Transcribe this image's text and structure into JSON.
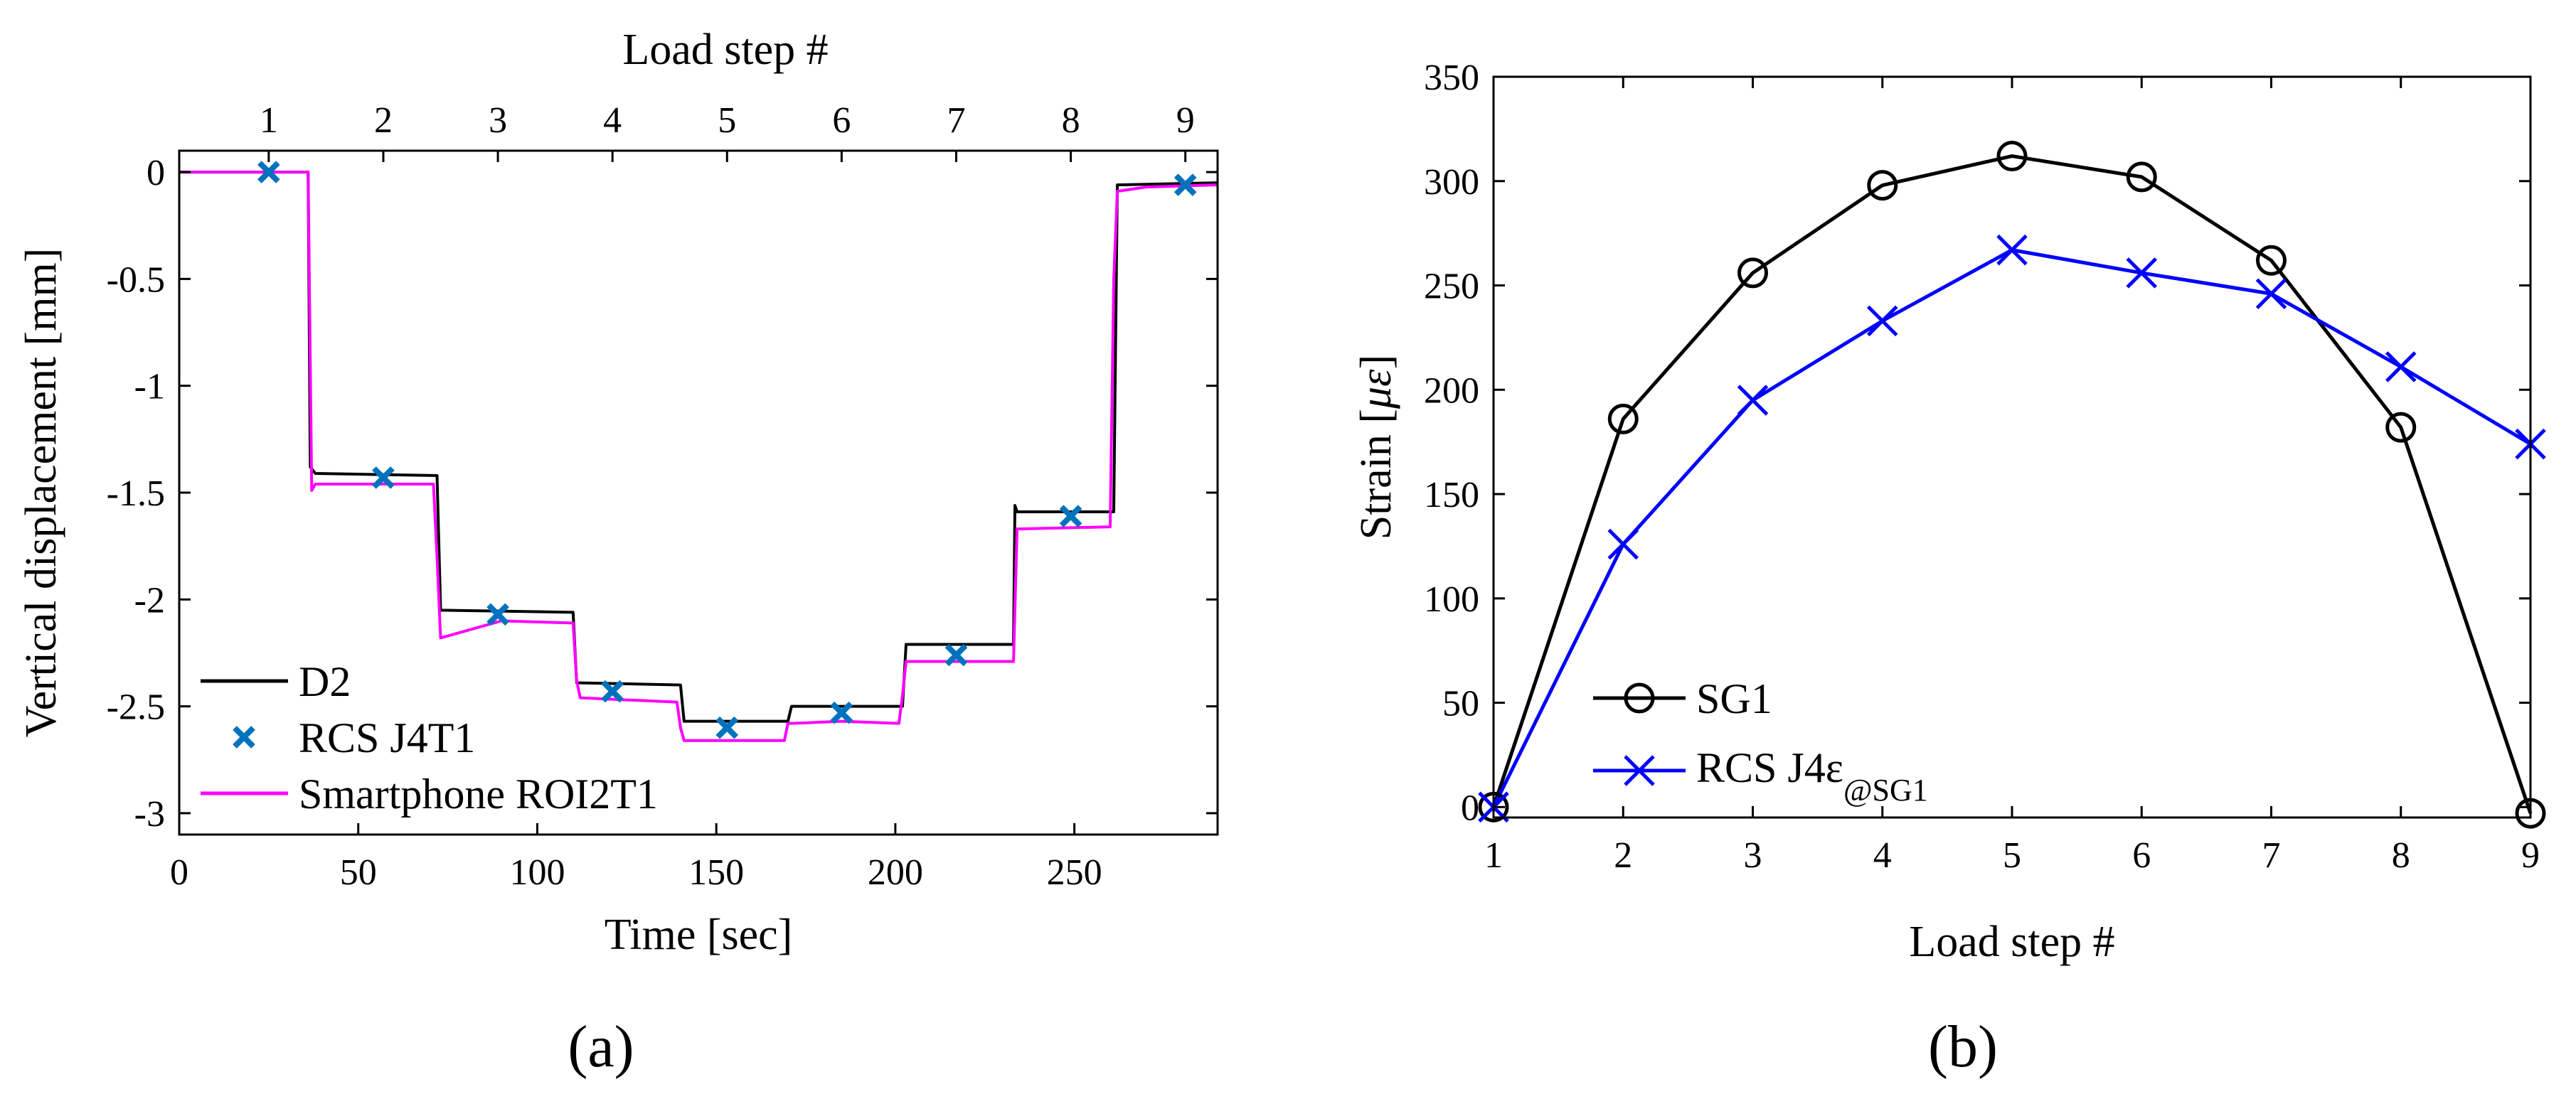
{
  "colors": {
    "d2": "#000000",
    "rcs_a": "#0072BD",
    "smartphone": "#FF00FF",
    "sg1": "#000000",
    "rcs_b": "#0000FF"
  },
  "chart_data": [
    {
      "id": "a",
      "type": "line",
      "caption": "(a)",
      "xlabel": "Time [sec]",
      "ylabel": "Vertical displacement [mm]",
      "top_xlabel": "Load step #",
      "xlim": [
        0,
        290
      ],
      "ylim": [
        -3.1,
        0.1
      ],
      "xticks": [
        0,
        50,
        100,
        150,
        200,
        250
      ],
      "yticks": [
        0,
        -0.5,
        -1,
        -1.5,
        -2,
        -2.5,
        -3
      ],
      "ytick_labels": [
        "0",
        "-0.5",
        "-1",
        "-1.5",
        "-2",
        "-2.5",
        "-3"
      ],
      "top_ticks": [
        {
          "label": "1",
          "x": 25
        },
        {
          "label": "2",
          "x": 57
        },
        {
          "label": "3",
          "x": 89
        },
        {
          "label": "4",
          "x": 121
        },
        {
          "label": "5",
          "x": 153
        },
        {
          "label": "6",
          "x": 185
        },
        {
          "label": "7",
          "x": 217
        },
        {
          "label": "8",
          "x": 249
        },
        {
          "label": "9",
          "x": 281
        }
      ],
      "series": [
        {
          "name": "D2",
          "style": "line",
          "color": "#000000",
          "x": [
            0,
            36,
            36.6,
            38,
            72,
            73,
            110,
            111,
            140,
            141,
            170,
            171,
            202,
            203,
            233,
            233.4,
            234,
            261,
            262,
            290
          ],
          "y": [
            0,
            0,
            -1.38,
            -1.41,
            -1.42,
            -2.05,
            -2.06,
            -2.39,
            -2.4,
            -2.57,
            -2.57,
            -2.5,
            -2.5,
            -2.21,
            -2.21,
            -1.56,
            -1.59,
            -1.59,
            -0.06,
            -0.05
          ]
        },
        {
          "name": "Smartphone ROI2T1",
          "style": "line",
          "color": "#FF00FF",
          "x": [
            0,
            36,
            37,
            38,
            60,
            71,
            72,
            73,
            90,
            110,
            111,
            112,
            125,
            139,
            140,
            141,
            155,
            169,
            170,
            171,
            185,
            201,
            202,
            203,
            215,
            233,
            234,
            260,
            261,
            262,
            270,
            290
          ],
          "y": [
            0,
            0,
            -1.49,
            -1.46,
            -1.46,
            -1.46,
            -1.8,
            -2.18,
            -2.1,
            -2.11,
            -2.38,
            -2.46,
            -2.47,
            -2.48,
            -2.6,
            -2.66,
            -2.66,
            -2.66,
            -2.58,
            -2.58,
            -2.57,
            -2.58,
            -2.45,
            -2.29,
            -2.29,
            -2.29,
            -1.67,
            -1.66,
            -0.5,
            -0.09,
            -0.07,
            -0.06
          ]
        },
        {
          "name": "RCS J4T1",
          "style": "marker-x",
          "color": "#0072BD",
          "x": [
            25,
            57,
            89,
            121,
            153,
            185,
            217,
            249,
            281
          ],
          "y": [
            0.0,
            -1.43,
            -2.07,
            -2.43,
            -2.6,
            -2.53,
            -2.26,
            -1.61,
            -0.06
          ]
        }
      ],
      "legend": [
        {
          "label": "D2",
          "style": "line",
          "color": "#000000"
        },
        {
          "label": "RCS J4T1",
          "style": "marker-x",
          "color": "#0072BD"
        },
        {
          "label": "Smartphone ROI2T1",
          "style": "line",
          "color": "#FF00FF"
        }
      ],
      "legend_position": "bottom-left"
    },
    {
      "id": "b",
      "type": "line",
      "caption": "(b)",
      "xlabel": "Load step #",
      "ylabel_prefix": "Strain [",
      "ylabel_mu": "μ",
      "ylabel_eps": "ε",
      "ylabel_suffix": "]",
      "xlim": [
        1,
        9
      ],
      "ylim": [
        -5,
        350
      ],
      "xticks": [
        1,
        2,
        3,
        4,
        5,
        6,
        7,
        8,
        9
      ],
      "yticks": [
        0,
        50,
        100,
        150,
        200,
        250,
        300,
        350
      ],
      "categories": [
        1,
        2,
        3,
        4,
        5,
        6,
        7,
        8,
        9
      ],
      "series": [
        {
          "name": "SG1",
          "marker": "circle",
          "color": "#000000",
          "values": [
            0,
            186,
            256,
            298,
            312,
            302,
            262,
            182,
            -3
          ]
        },
        {
          "name": "RCS J4ε@SG1",
          "marker": "x",
          "color": "#0000FF",
          "values": [
            0,
            126,
            195,
            233,
            267,
            256,
            246,
            211,
            174
          ]
        }
      ],
      "legend": [
        {
          "label": "SG1",
          "marker": "circle",
          "color": "#000000"
        },
        {
          "label_main": "RCS J4ε",
          "label_sub": "@SG1",
          "marker": "x",
          "color": "#0000FF"
        }
      ],
      "legend_position": "bottom-left"
    }
  ]
}
